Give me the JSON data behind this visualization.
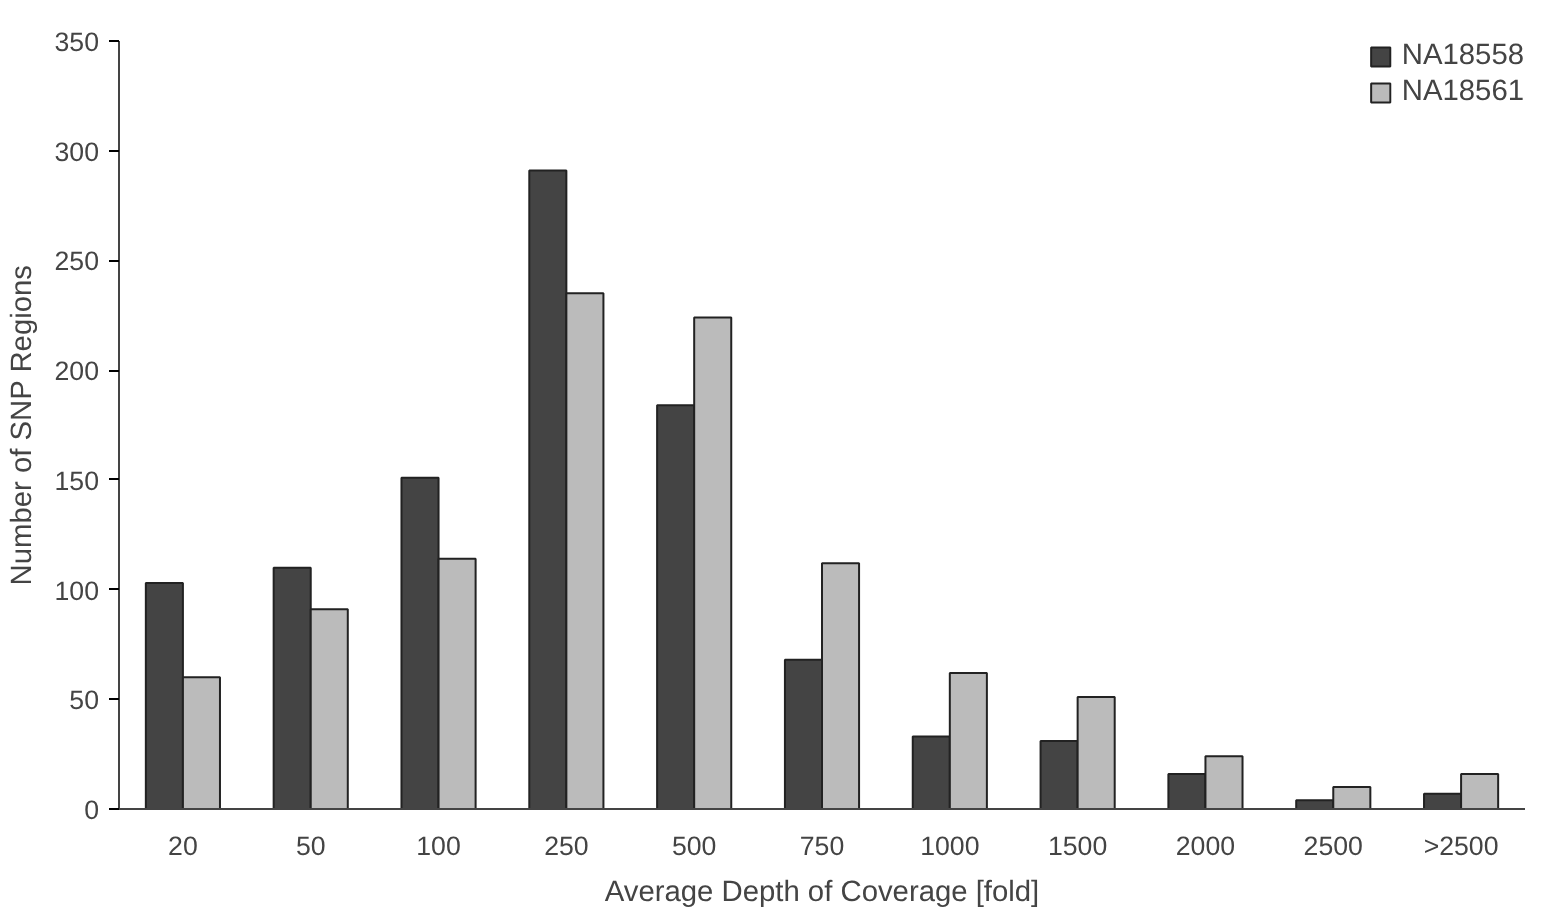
{
  "chart_data": {
    "type": "bar",
    "xlabel": "Average Depth of Coverage [fold]",
    "ylabel": "Number of SNP Regions",
    "categories": [
      "20",
      "50",
      "100",
      "250",
      "500",
      "750",
      "1000",
      "1500",
      "2000",
      "2500",
      ">2500"
    ],
    "series": [
      {
        "name": "NA18558",
        "color": "#444444",
        "values": [
          103,
          110,
          151,
          291,
          184,
          68,
          33,
          31,
          16,
          4,
          7
        ]
      },
      {
        "name": "NA18561",
        "color": "#bbbbbb",
        "values": [
          60,
          91,
          114,
          235,
          224,
          112,
          62,
          51,
          24,
          10,
          16
        ]
      }
    ],
    "ylim": [
      0,
      350
    ],
    "yticks": [
      0,
      50,
      100,
      150,
      200,
      250,
      300,
      350
    ],
    "grid": false,
    "legend": "top right"
  }
}
